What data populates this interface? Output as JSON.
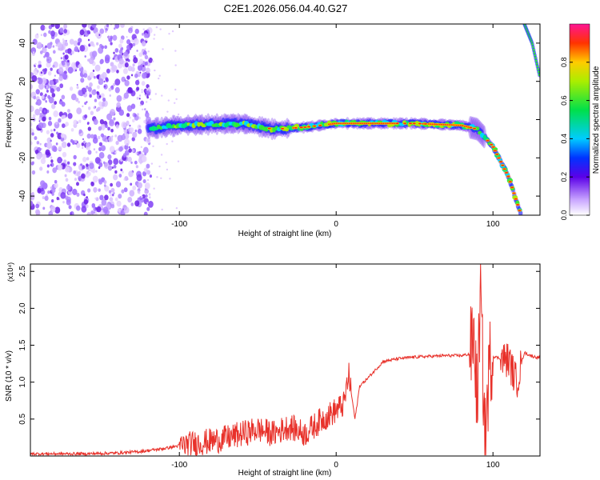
{
  "title": "C2E1.2026.056.04.40.G27",
  "chart_data": [
    {
      "type": "heatmap",
      "title": "C2E1.2026.056.04.40.G27",
      "xlabel": "Height of straight line (km)",
      "ylabel": "Frequency (Hz)",
      "xlim": [
        -195,
        130
      ],
      "ylim": [
        -50,
        50
      ],
      "x_ticks": [
        -100,
        0,
        100
      ],
      "x_tick_labels": [
        "-100",
        "0",
        "100"
      ],
      "y_ticks": [
        -40,
        -20,
        0,
        20,
        40
      ],
      "y_tick_labels": [
        "-40",
        "-20",
        "0",
        "20",
        "40"
      ],
      "colorbar": {
        "label": "Normalized spectral amplitude",
        "range": [
          0,
          1
        ],
        "ticks": [
          0.0,
          0.2,
          0.4,
          0.6,
          0.8
        ],
        "tick_labels": [
          "0.0",
          "0.2",
          "0.4",
          "0.6",
          "0.8"
        ]
      },
      "features": {
        "noise_region_x": [
          -195,
          -118
        ],
        "signal_track": [
          {
            "x": -120,
            "y": -5
          },
          {
            "x": -100,
            "y": -3
          },
          {
            "x": -60,
            "y": -2
          },
          {
            "x": -40,
            "y": -5
          },
          {
            "x": -20,
            "y": -4
          },
          {
            "x": 0,
            "y": -2
          },
          {
            "x": 20,
            "y": -2
          },
          {
            "x": 50,
            "y": -2
          },
          {
            "x": 80,
            "y": -3
          },
          {
            "x": 90,
            "y": -5
          },
          {
            "x": 100,
            "y": -14
          },
          {
            "x": 110,
            "y": -30
          },
          {
            "x": 118,
            "y": -50
          }
        ],
        "aliased_track": [
          {
            "x": 120,
            "y": 50
          },
          {
            "x": 125,
            "y": 40
          },
          {
            "x": 130,
            "y": 22
          }
        ]
      }
    },
    {
      "type": "line",
      "title": "",
      "xlabel": "Height of straight line (km)",
      "ylabel": "SNR (10 * v/v)",
      "scale_label": "(x10⁴)",
      "xlim": [
        -195,
        130
      ],
      "ylim": [
        0,
        2.6
      ],
      "x_ticks": [
        -100,
        0,
        100
      ],
      "x_tick_labels": [
        "-100",
        "0",
        "100"
      ],
      "y_ticks": [
        0.5,
        1.0,
        1.5,
        2.0,
        2.5
      ],
      "y_tick_labels": [
        "0.5",
        "1.0",
        "1.5",
        "2.0",
        "2.5"
      ],
      "series": [
        {
          "name": "SNR",
          "color": "#e8312a",
          "x": [
            -195,
            -180,
            -160,
            -140,
            -125,
            -110,
            -100,
            -90,
            -80,
            -70,
            -60,
            -50,
            -40,
            -30,
            -20,
            -10,
            0,
            5,
            8,
            12,
            15,
            20,
            30,
            40,
            50,
            60,
            70,
            80,
            85,
            88,
            90,
            92,
            95,
            98,
            100,
            105,
            110,
            115,
            120,
            125,
            130
          ],
          "y": [
            0.03,
            0.03,
            0.03,
            0.04,
            0.06,
            0.1,
            0.14,
            0.17,
            0.2,
            0.24,
            0.3,
            0.36,
            0.3,
            0.4,
            0.3,
            0.48,
            0.62,
            0.7,
            1.1,
            0.5,
            0.95,
            1.05,
            1.28,
            1.32,
            1.34,
            1.35,
            1.36,
            1.36,
            1.38,
            1.6,
            0.7,
            2.2,
            0.2,
            1.3,
            1.35,
            1.32,
            1.3,
            1.0,
            1.4,
            1.35,
            1.33
          ],
          "noise_x": [
            [
              -100,
              10
            ],
            [
              85,
              100
            ],
            [
              105,
              118
            ]
          ],
          "noise_amplitude": [
            0.18,
            0.6,
            0.25
          ]
        }
      ]
    }
  ]
}
